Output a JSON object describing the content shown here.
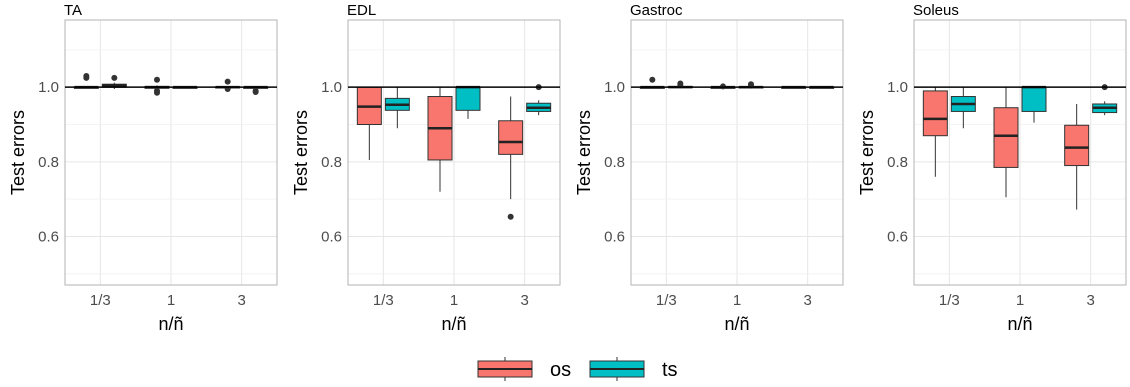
{
  "colors": {
    "os": "#F8766D",
    "ts": "#00BFC4",
    "grid": "#e6e6e6",
    "panel_border": "#b3b3b3",
    "ref_line": "#000000"
  },
  "legend": {
    "items": [
      {
        "key": "os",
        "label": "os",
        "color": "#F8766D"
      },
      {
        "key": "ts",
        "label": "ts",
        "color": "#00BFC4"
      }
    ],
    "placement": "bottom"
  },
  "chart_data": [
    {
      "type": "boxplot",
      "title": "TA",
      "ylabel": "Test errors",
      "xlabel": "n/ñ",
      "categories": [
        "1/3",
        "1",
        "3"
      ],
      "yticks": [
        0.6,
        0.8,
        1.0
      ],
      "ylim": [
        0.47,
        1.18
      ],
      "reference_line": 1.0,
      "grid": true,
      "series": [
        {
          "name": "os",
          "boxes": [
            {
              "low": 1.0,
              "q1": 1.0,
              "median": 1.0,
              "q3": 1.0,
              "high": 1.0,
              "outliers": [
                1.03,
                1.025
              ]
            },
            {
              "low": 0.995,
              "q1": 0.997,
              "median": 1.0,
              "q3": 1.002,
              "high": 1.005,
              "outliers": [
                1.02,
                0.99,
                0.985
              ]
            },
            {
              "low": 0.998,
              "q1": 0.999,
              "median": 1.0,
              "q3": 1.001,
              "high": 1.002,
              "outliers": [
                1.015,
                0.995
              ]
            }
          ]
        },
        {
          "name": "ts",
          "boxes": [
            {
              "low": 0.995,
              "q1": 1.0,
              "median": 1.005,
              "q3": 1.008,
              "high": 1.012,
              "outliers": [
                1.025
              ]
            },
            {
              "low": 0.999,
              "q1": 1.0,
              "median": 1.0,
              "q3": 1.0,
              "high": 1.001,
              "outliers": []
            },
            {
              "low": 0.995,
              "q1": 0.998,
              "median": 1.0,
              "q3": 1.0,
              "high": 1.0,
              "outliers": [
                0.99,
                0.987
              ]
            }
          ]
        }
      ]
    },
    {
      "type": "boxplot",
      "title": "EDL",
      "ylabel": "Test errors",
      "xlabel": "n/ñ",
      "categories": [
        "1/3",
        "1",
        "3"
      ],
      "yticks": [
        0.6,
        0.8,
        1.0
      ],
      "ylim": [
        0.47,
        1.18
      ],
      "reference_line": 1.0,
      "grid": true,
      "series": [
        {
          "name": "os",
          "boxes": [
            {
              "low": 0.805,
              "q1": 0.9,
              "median": 0.948,
              "q3": 1.0,
              "high": 1.0,
              "outliers": []
            },
            {
              "low": 0.72,
              "q1": 0.805,
              "median": 0.89,
              "q3": 0.975,
              "high": 1.0,
              "outliers": []
            },
            {
              "low": 0.7,
              "q1": 0.82,
              "median": 0.853,
              "q3": 0.91,
              "high": 0.975,
              "outliers": [
                0.653
              ]
            }
          ]
        },
        {
          "name": "ts",
          "boxes": [
            {
              "low": 0.89,
              "q1": 0.938,
              "median": 0.953,
              "q3": 0.97,
              "high": 1.0,
              "outliers": []
            },
            {
              "low": 0.915,
              "q1": 0.938,
              "median": 1.0,
              "q3": 1.0,
              "high": 1.0,
              "outliers": []
            },
            {
              "low": 0.925,
              "q1": 0.935,
              "median": 0.945,
              "q3": 0.957,
              "high": 0.965,
              "outliers": [
                1.0
              ]
            }
          ]
        }
      ]
    },
    {
      "type": "boxplot",
      "title": "Gastroc",
      "ylabel": "Test errors",
      "xlabel": "n/ñ",
      "categories": [
        "1/3",
        "1",
        "3"
      ],
      "yticks": [
        0.6,
        0.8,
        1.0
      ],
      "ylim": [
        0.47,
        1.18
      ],
      "reference_line": 1.0,
      "grid": true,
      "series": [
        {
          "name": "os",
          "boxes": [
            {
              "low": 0.999,
              "q1": 1.0,
              "median": 1.0,
              "q3": 1.0,
              "high": 1.001,
              "outliers": [
                1.02
              ]
            },
            {
              "low": 0.999,
              "q1": 1.0,
              "median": 1.0,
              "q3": 1.0,
              "high": 1.001,
              "outliers": [
                1.002
              ]
            },
            {
              "low": 1.0,
              "q1": 1.0,
              "median": 1.0,
              "q3": 1.0,
              "high": 1.0,
              "outliers": []
            }
          ]
        },
        {
          "name": "ts",
          "boxes": [
            {
              "low": 0.998,
              "q1": 0.999,
              "median": 1.0,
              "q3": 1.002,
              "high": 1.004,
              "outliers": [
                1.01,
                1.005
              ]
            },
            {
              "low": 0.999,
              "q1": 1.0,
              "median": 1.0,
              "q3": 1.001,
              "high": 1.003,
              "outliers": [
                1.008,
                1.004
              ]
            },
            {
              "low": 1.0,
              "q1": 1.0,
              "median": 1.0,
              "q3": 1.0,
              "high": 1.0,
              "outliers": []
            }
          ]
        }
      ]
    },
    {
      "type": "boxplot",
      "title": "Soleus",
      "ylabel": "Test errors",
      "xlabel": "n/ñ",
      "categories": [
        "1/3",
        "1",
        "3"
      ],
      "yticks": [
        0.6,
        0.8,
        1.0
      ],
      "ylim": [
        0.47,
        1.18
      ],
      "reference_line": 1.0,
      "grid": true,
      "series": [
        {
          "name": "os",
          "boxes": [
            {
              "low": 0.76,
              "q1": 0.87,
              "median": 0.915,
              "q3": 0.99,
              "high": 1.0,
              "outliers": []
            },
            {
              "low": 0.705,
              "q1": 0.785,
              "median": 0.87,
              "q3": 0.945,
              "high": 1.0,
              "outliers": []
            },
            {
              "low": 0.672,
              "q1": 0.79,
              "median": 0.838,
              "q3": 0.898,
              "high": 0.955,
              "outliers": []
            }
          ]
        },
        {
          "name": "ts",
          "boxes": [
            {
              "low": 0.89,
              "q1": 0.935,
              "median": 0.955,
              "q3": 0.975,
              "high": 1.0,
              "outliers": []
            },
            {
              "low": 0.905,
              "q1": 0.935,
              "median": 1.0,
              "q3": 1.0,
              "high": 1.0,
              "outliers": []
            },
            {
              "low": 0.925,
              "q1": 0.932,
              "median": 0.945,
              "q3": 0.955,
              "high": 0.962,
              "outliers": [
                1.0
              ]
            }
          ]
        }
      ]
    }
  ]
}
